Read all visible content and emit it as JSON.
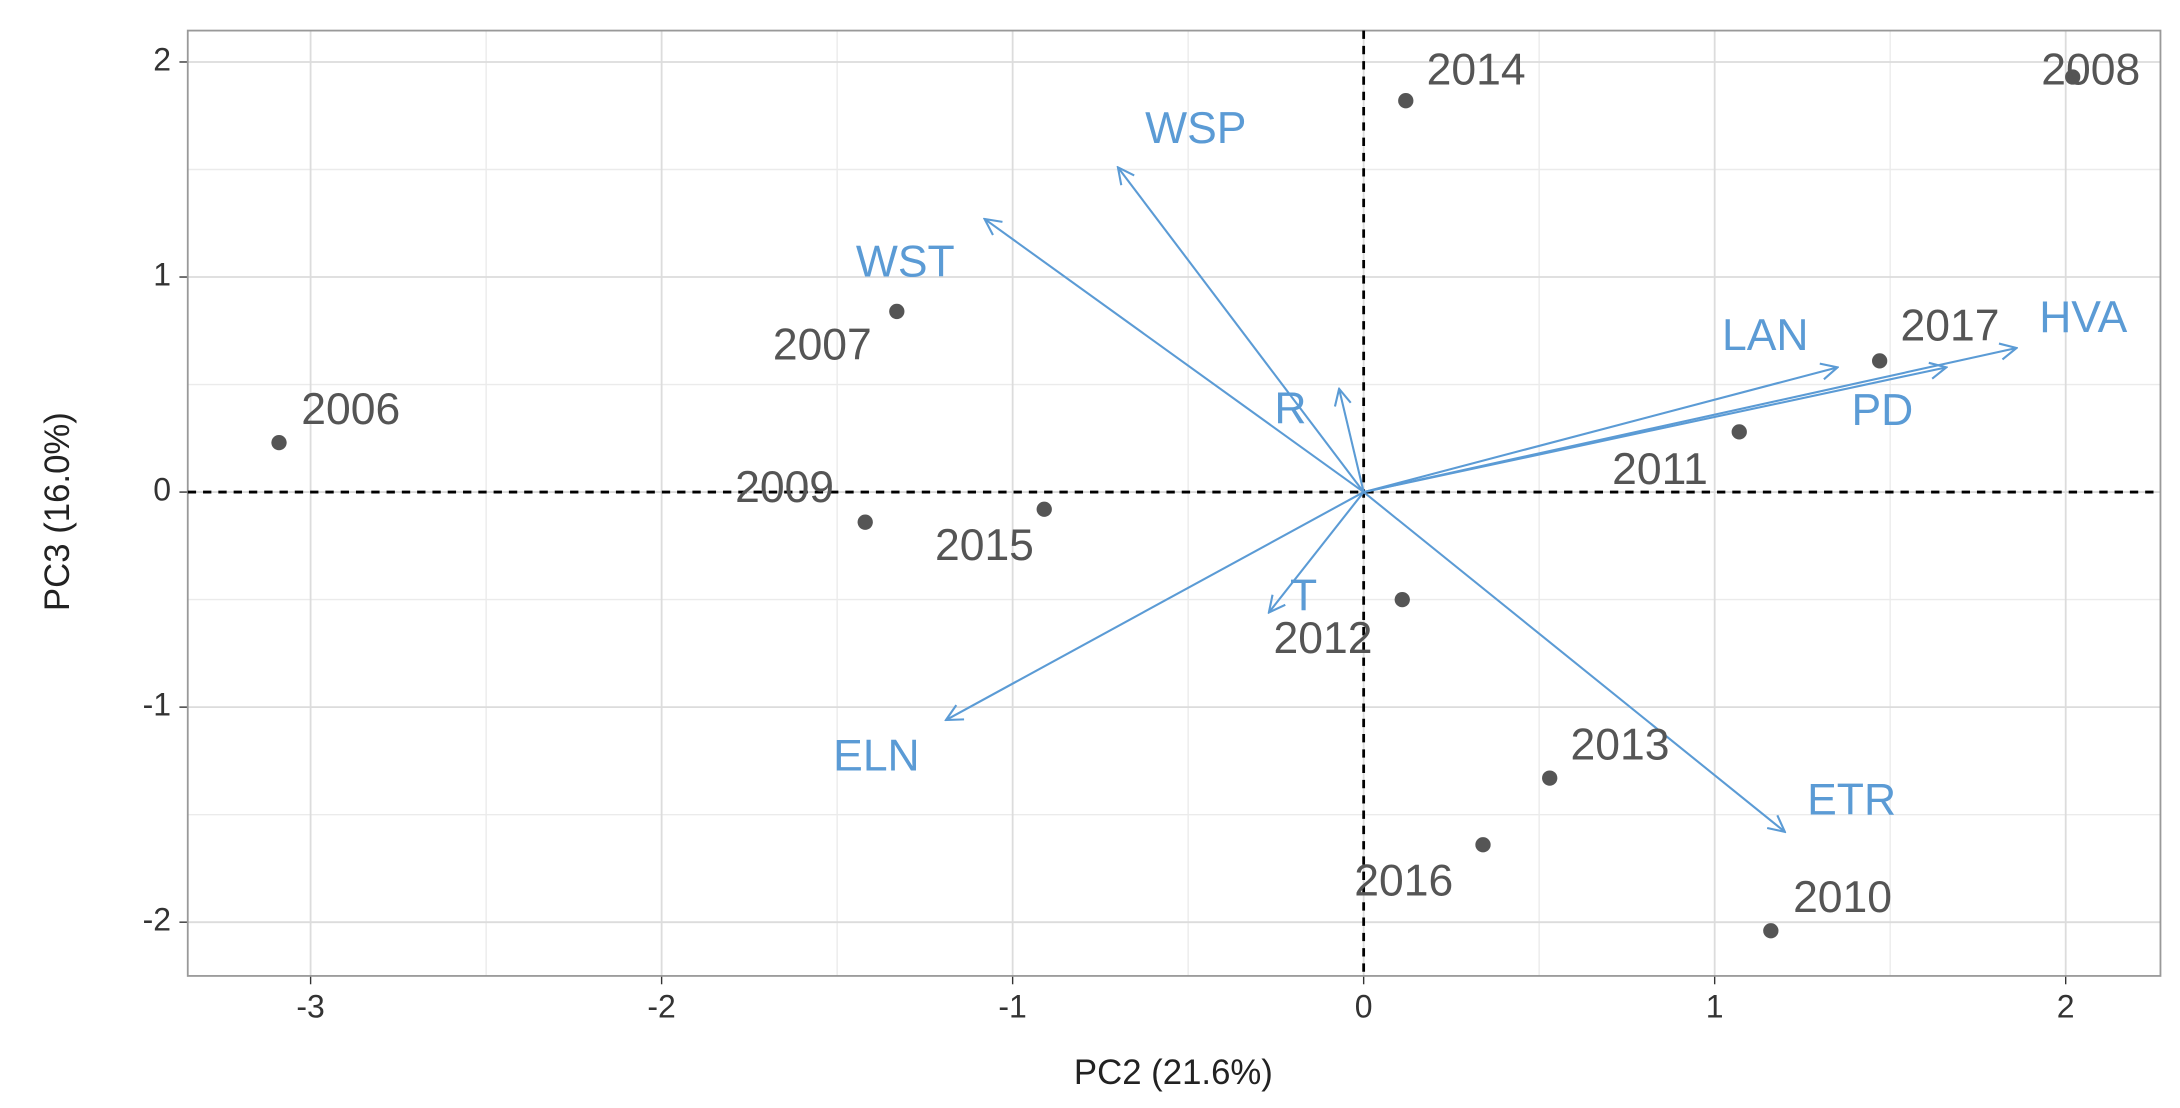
{
  "chart_data": {
    "type": "biplot",
    "x_label": "PC2 (21.6%)",
    "y_label": "PC3 (16.0%)",
    "xlim": [
      -3.35,
      2.27
    ],
    "ylim": [
      -2.25,
      2.146
    ],
    "xticks": [
      -3,
      -2,
      -1,
      0,
      1,
      2
    ],
    "yticks": [
      -2,
      -1,
      0,
      1,
      2
    ],
    "grid": true,
    "hline": 0,
    "vline": 0,
    "points": {
      "color": "#555555",
      "labels": [
        "2006",
        "2007",
        "2008",
        "2009",
        "2010",
        "2011",
        "2012",
        "2013",
        "2014",
        "2015",
        "2016",
        "2017"
      ],
      "x": [
        -3.09,
        -1.33,
        2.02,
        -1.42,
        1.16,
        1.07,
        0.11,
        0.53,
        0.12,
        -0.91,
        0.34,
        1.47
      ],
      "y": [
        0.23,
        0.84,
        1.93,
        -0.14,
        -2.04,
        0.28,
        -0.5,
        -1.33,
        1.82,
        -0.08,
        -1.64,
        0.61
      ]
    },
    "loadings": {
      "color": "#5b9bd5",
      "labels": [
        "WSP",
        "WST",
        "R",
        "LAN",
        "PD",
        "HVA",
        "ELN",
        "T",
        "ETR"
      ],
      "x": [
        -0.7,
        -1.08,
        -0.07,
        1.35,
        1.66,
        1.86,
        -1.19,
        -0.27,
        1.2
      ],
      "y": [
        1.51,
        1.27,
        0.48,
        0.58,
        0.58,
        0.67,
        -1.06,
        -0.56,
        -1.58
      ]
    }
  }
}
